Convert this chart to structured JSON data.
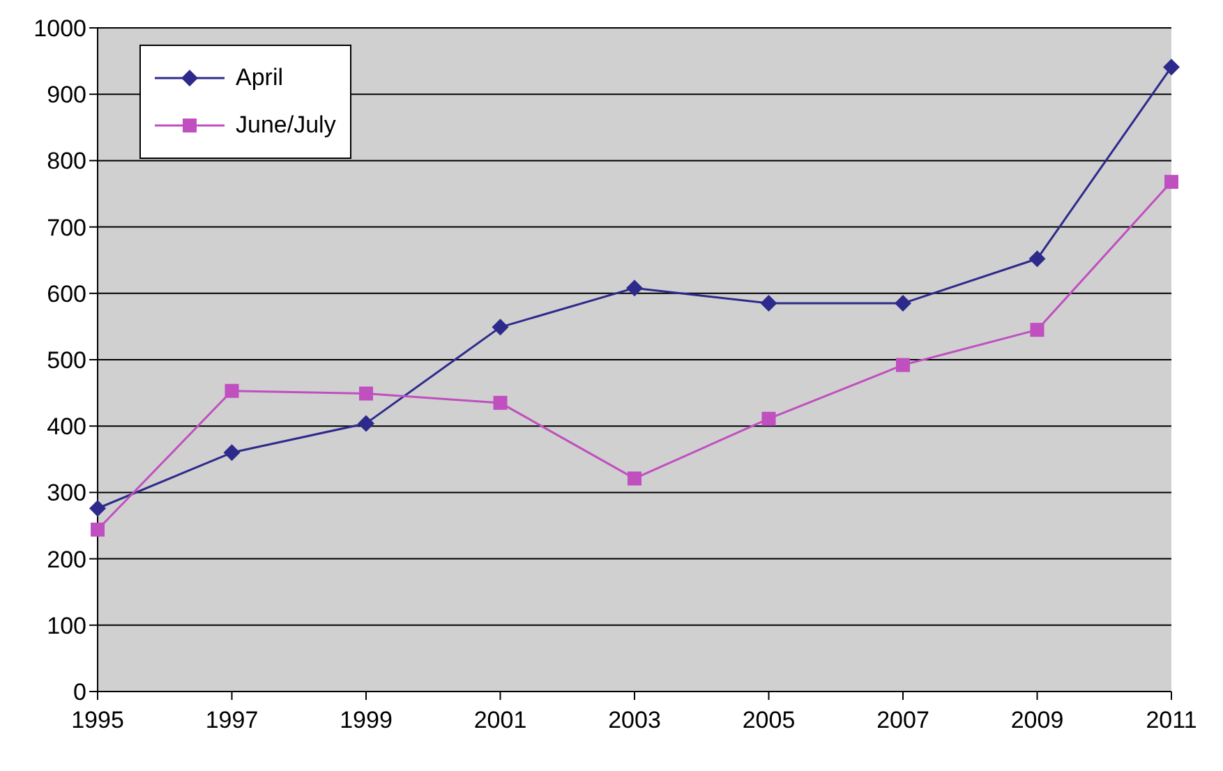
{
  "chart_data": {
    "type": "line",
    "categories": [
      "1995",
      "1997",
      "1999",
      "2001",
      "2003",
      "2005",
      "2007",
      "2009",
      "2011"
    ],
    "series": [
      {
        "name": "April",
        "color": "#2e2a8c",
        "marker": "diamond",
        "values": [
          276,
          360,
          404,
          549,
          608,
          585,
          585,
          652,
          941
        ]
      },
      {
        "name": "June/July",
        "color": "#c04fbf",
        "marker": "square",
        "values": [
          244,
          453,
          449,
          435,
          321,
          411,
          492,
          545,
          768
        ]
      }
    ],
    "ylim": [
      0,
      1000
    ],
    "yticks": [
      0,
      100,
      200,
      300,
      400,
      500,
      600,
      700,
      800,
      900,
      1000
    ],
    "grid": "y",
    "legend": "top left"
  }
}
